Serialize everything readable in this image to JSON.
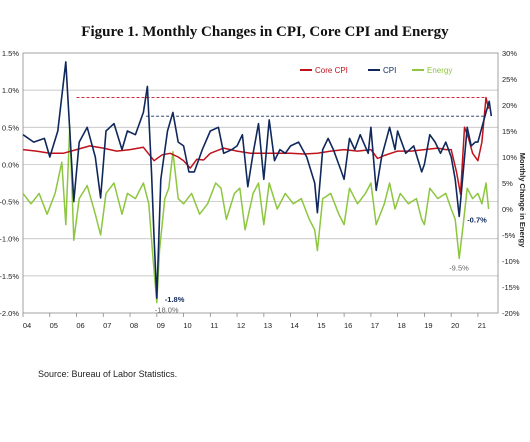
{
  "title": "Figure 1. Monthly Changes in CPI, Core CPI and Energy",
  "source": "Source: Bureau of Labor Statistics.",
  "chart_data": {
    "type": "line",
    "left_axis": {
      "range": [
        -2.0,
        1.5
      ],
      "ticks": [
        "1.5%",
        "1.0%",
        "0.5%",
        "0.0%",
        "-0.5%",
        "-1.0%",
        "-1.5%",
        "-2.0%"
      ],
      "tick_values": [
        1.5,
        1.0,
        0.5,
        0.0,
        -0.5,
        -1.0,
        -1.5,
        -2.0
      ]
    },
    "right_axis": {
      "label": "Monthly Change in Energy",
      "range": [
        -20,
        30
      ],
      "ticks": [
        "30%",
        "25%",
        "20%",
        "15%",
        "10%",
        "5%",
        "0%",
        "-5%",
        "-10%",
        "-15%",
        "-20%"
      ],
      "tick_values": [
        30,
        25,
        20,
        15,
        10,
        5,
        0,
        -5,
        -10,
        -15,
        -20
      ]
    },
    "x_axis": {
      "range": [
        2004,
        2021.75
      ],
      "tick_labels": [
        "04",
        "05",
        "06",
        "07",
        "08",
        "09",
        "10",
        "11",
        "12",
        "13",
        "14",
        "15",
        "16",
        "17",
        "18",
        "19",
        "20",
        "21"
      ],
      "tick_values": [
        2004,
        2005,
        2006,
        2007,
        2008,
        2009,
        2010,
        2011,
        2012,
        2013,
        2014,
        2015,
        2016,
        2017,
        2018,
        2019,
        2020,
        2021
      ]
    },
    "grid": "horizontal",
    "legend_placement": "top-right",
    "series": [
      {
        "name": "Core CPI",
        "axis": "left",
        "color": "#c0121b",
        "points": [
          [
            2004.0,
            0.2
          ],
          [
            2004.5,
            0.18
          ],
          [
            2005.0,
            0.15
          ],
          [
            2005.5,
            0.15
          ],
          [
            2006.0,
            0.2
          ],
          [
            2006.5,
            0.25
          ],
          [
            2007.0,
            0.22
          ],
          [
            2007.5,
            0.18
          ],
          [
            2008.0,
            0.2
          ],
          [
            2008.5,
            0.23
          ],
          [
            2008.9,
            0.05
          ],
          [
            2009.2,
            0.13
          ],
          [
            2009.5,
            0.15
          ],
          [
            2009.8,
            0.1
          ],
          [
            2010.0,
            0.05
          ],
          [
            2010.25,
            -0.05
          ],
          [
            2010.5,
            0.07
          ],
          [
            2010.75,
            0.06
          ],
          [
            2011.0,
            0.15
          ],
          [
            2011.5,
            0.22
          ],
          [
            2012.0,
            0.18
          ],
          [
            2012.5,
            0.15
          ],
          [
            2013.0,
            0.15
          ],
          [
            2013.5,
            0.15
          ],
          [
            2014.0,
            0.15
          ],
          [
            2014.5,
            0.14
          ],
          [
            2015.0,
            0.15
          ],
          [
            2015.5,
            0.18
          ],
          [
            2016.0,
            0.2
          ],
          [
            2016.5,
            0.18
          ],
          [
            2017.0,
            0.2
          ],
          [
            2017.25,
            0.08
          ],
          [
            2017.5,
            0.12
          ],
          [
            2018.0,
            0.18
          ],
          [
            2018.5,
            0.18
          ],
          [
            2019.0,
            0.2
          ],
          [
            2019.5,
            0.22
          ],
          [
            2019.8,
            0.2
          ],
          [
            2020.0,
            0.2
          ],
          [
            2020.2,
            -0.1
          ],
          [
            2020.35,
            -0.4
          ],
          [
            2020.5,
            0.5
          ],
          [
            2020.65,
            0.35
          ],
          [
            2020.8,
            0.15
          ],
          [
            2021.0,
            0.05
          ],
          [
            2021.15,
            0.3
          ],
          [
            2021.3,
            0.9
          ],
          [
            2021.4,
            0.75
          ]
        ]
      },
      {
        "name": "CPI",
        "axis": "left",
        "color": "#10285c",
        "points": [
          [
            2004.0,
            0.4
          ],
          [
            2004.4,
            0.3
          ],
          [
            2004.8,
            0.35
          ],
          [
            2005.0,
            0.1
          ],
          [
            2005.3,
            0.45
          ],
          [
            2005.6,
            1.38
          ],
          [
            2005.75,
            0.45
          ],
          [
            2005.9,
            -0.5
          ],
          [
            2006.1,
            0.3
          ],
          [
            2006.4,
            0.5
          ],
          [
            2006.7,
            0.1
          ],
          [
            2006.9,
            -0.45
          ],
          [
            2007.1,
            0.45
          ],
          [
            2007.4,
            0.55
          ],
          [
            2007.7,
            0.2
          ],
          [
            2007.9,
            0.45
          ],
          [
            2008.2,
            0.4
          ],
          [
            2008.5,
            0.7
          ],
          [
            2008.65,
            1.05
          ],
          [
            2008.8,
            -0.1
          ],
          [
            2008.9,
            -1.0
          ],
          [
            2009.0,
            -1.8
          ],
          [
            2009.15,
            -0.2
          ],
          [
            2009.4,
            0.45
          ],
          [
            2009.6,
            0.7
          ],
          [
            2009.8,
            0.3
          ],
          [
            2010.0,
            0.25
          ],
          [
            2010.2,
            -0.1
          ],
          [
            2010.4,
            -0.1
          ],
          [
            2010.7,
            0.2
          ],
          [
            2011.0,
            0.45
          ],
          [
            2011.3,
            0.5
          ],
          [
            2011.5,
            0.15
          ],
          [
            2011.8,
            0.2
          ],
          [
            2012.0,
            0.25
          ],
          [
            2012.2,
            0.4
          ],
          [
            2012.4,
            -0.3
          ],
          [
            2012.6,
            0.15
          ],
          [
            2012.8,
            0.55
          ],
          [
            2013.0,
            -0.2
          ],
          [
            2013.2,
            0.6
          ],
          [
            2013.4,
            0.05
          ],
          [
            2013.6,
            0.2
          ],
          [
            2013.8,
            0.15
          ],
          [
            2014.0,
            0.25
          ],
          [
            2014.3,
            0.3
          ],
          [
            2014.6,
            0.1
          ],
          [
            2014.9,
            -0.25
          ],
          [
            2015.0,
            -0.65
          ],
          [
            2015.2,
            0.2
          ],
          [
            2015.4,
            0.35
          ],
          [
            2015.6,
            0.2
          ],
          [
            2015.9,
            -0.1
          ],
          [
            2016.0,
            -0.2
          ],
          [
            2016.2,
            0.35
          ],
          [
            2016.4,
            0.2
          ],
          [
            2016.6,
            0.4
          ],
          [
            2016.9,
            0.15
          ],
          [
            2017.0,
            0.5
          ],
          [
            2017.2,
            -0.35
          ],
          [
            2017.4,
            0.1
          ],
          [
            2017.7,
            0.5
          ],
          [
            2017.9,
            0.2
          ],
          [
            2018.0,
            0.45
          ],
          [
            2018.3,
            0.15
          ],
          [
            2018.6,
            0.25
          ],
          [
            2018.9,
            -0.1
          ],
          [
            2019.0,
            0.0
          ],
          [
            2019.2,
            0.4
          ],
          [
            2019.4,
            0.3
          ],
          [
            2019.6,
            0.15
          ],
          [
            2019.8,
            0.3
          ],
          [
            2020.0,
            0.1
          ],
          [
            2020.15,
            -0.2
          ],
          [
            2020.3,
            -0.7
          ],
          [
            2020.45,
            -0.1
          ],
          [
            2020.6,
            0.5
          ],
          [
            2020.75,
            0.25
          ],
          [
            2020.9,
            0.3
          ],
          [
            2021.0,
            0.3
          ],
          [
            2021.15,
            0.5
          ],
          [
            2021.3,
            0.7
          ],
          [
            2021.42,
            0.85
          ],
          [
            2021.5,
            0.65
          ]
        ]
      },
      {
        "name": "Energy",
        "axis": "right",
        "color": "#8dc63f",
        "points": [
          [
            2004.0,
            3.0
          ],
          [
            2004.3,
            1.0
          ],
          [
            2004.6,
            3.0
          ],
          [
            2004.9,
            -1.0
          ],
          [
            2005.2,
            3.0
          ],
          [
            2005.45,
            9.0
          ],
          [
            2005.6,
            -3.0
          ],
          [
            2005.75,
            16.0
          ],
          [
            2005.9,
            -6.0
          ],
          [
            2006.1,
            2.0
          ],
          [
            2006.4,
            4.5
          ],
          [
            2006.7,
            -1.0
          ],
          [
            2006.9,
            -5.0
          ],
          [
            2007.1,
            3.0
          ],
          [
            2007.4,
            5.0
          ],
          [
            2007.7,
            -1.0
          ],
          [
            2007.9,
            3.0
          ],
          [
            2008.2,
            2.0
          ],
          [
            2008.5,
            5.0
          ],
          [
            2008.7,
            1.0
          ],
          [
            2008.85,
            -9.0
          ],
          [
            2009.0,
            -18.0
          ],
          [
            2009.1,
            -8.0
          ],
          [
            2009.3,
            2.0
          ],
          [
            2009.45,
            4.0
          ],
          [
            2009.6,
            11.0
          ],
          [
            2009.8,
            2.0
          ],
          [
            2010.0,
            1.0
          ],
          [
            2010.3,
            3.0
          ],
          [
            2010.6,
            -1.0
          ],
          [
            2010.9,
            1.0
          ],
          [
            2011.2,
            5.0
          ],
          [
            2011.4,
            4.0
          ],
          [
            2011.6,
            -2.0
          ],
          [
            2011.9,
            3.0
          ],
          [
            2012.1,
            4.0
          ],
          [
            2012.3,
            -4.0
          ],
          [
            2012.6,
            3.0
          ],
          [
            2012.8,
            5.0
          ],
          [
            2013.0,
            -3.0
          ],
          [
            2013.2,
            5.0
          ],
          [
            2013.5,
            0.0
          ],
          [
            2013.8,
            3.0
          ],
          [
            2014.1,
            1.0
          ],
          [
            2014.4,
            2.0
          ],
          [
            2014.7,
            -2.0
          ],
          [
            2014.9,
            -4.0
          ],
          [
            2015.0,
            -8.0
          ],
          [
            2015.2,
            2.0
          ],
          [
            2015.5,
            3.0
          ],
          [
            2015.8,
            -1.0
          ],
          [
            2016.0,
            -3.0
          ],
          [
            2016.2,
            4.0
          ],
          [
            2016.5,
            1.0
          ],
          [
            2016.8,
            3.0
          ],
          [
            2017.0,
            5.0
          ],
          [
            2017.2,
            -3.0
          ],
          [
            2017.5,
            1.0
          ],
          [
            2017.7,
            5.0
          ],
          [
            2017.9,
            0.0
          ],
          [
            2018.1,
            3.0
          ],
          [
            2018.4,
            1.0
          ],
          [
            2018.7,
            2.0
          ],
          [
            2018.9,
            -2.0
          ],
          [
            2019.0,
            -3.0
          ],
          [
            2019.2,
            4.0
          ],
          [
            2019.5,
            2.0
          ],
          [
            2019.8,
            3.0
          ],
          [
            2020.0,
            0.0
          ],
          [
            2020.15,
            -2.0
          ],
          [
            2020.3,
            -9.5
          ],
          [
            2020.45,
            -3.0
          ],
          [
            2020.6,
            4.0
          ],
          [
            2020.8,
            2.0
          ],
          [
            2021.0,
            3.0
          ],
          [
            2021.15,
            1.0
          ],
          [
            2021.3,
            5.0
          ],
          [
            2021.4,
            0.0
          ]
        ]
      }
    ],
    "reference_lines": [
      {
        "series": "Core CPI",
        "value": 0.9,
        "axis": "left",
        "color": "#c0121b",
        "x_start": 2006.0,
        "x_end": 2021.3
      },
      {
        "series": "CPI",
        "value": 0.65,
        "axis": "left",
        "color": "#10285c",
        "x_start": 2008.6,
        "x_end": 2021.3
      }
    ],
    "annotations": [
      {
        "text": "-1.8%",
        "x": 2009.0,
        "value": -1.8,
        "axis": "left",
        "color": "#10285c"
      },
      {
        "text": "-18.0%",
        "x": 2009.0,
        "value": -18.0,
        "axis": "right",
        "color": "#666666"
      },
      {
        "text": "-0.7%",
        "x": 2020.3,
        "value": -0.7,
        "axis": "left",
        "color": "#10285c"
      },
      {
        "text": "-9.5%",
        "x": 2020.3,
        "value": -9.5,
        "axis": "right",
        "color": "#666666"
      }
    ]
  }
}
